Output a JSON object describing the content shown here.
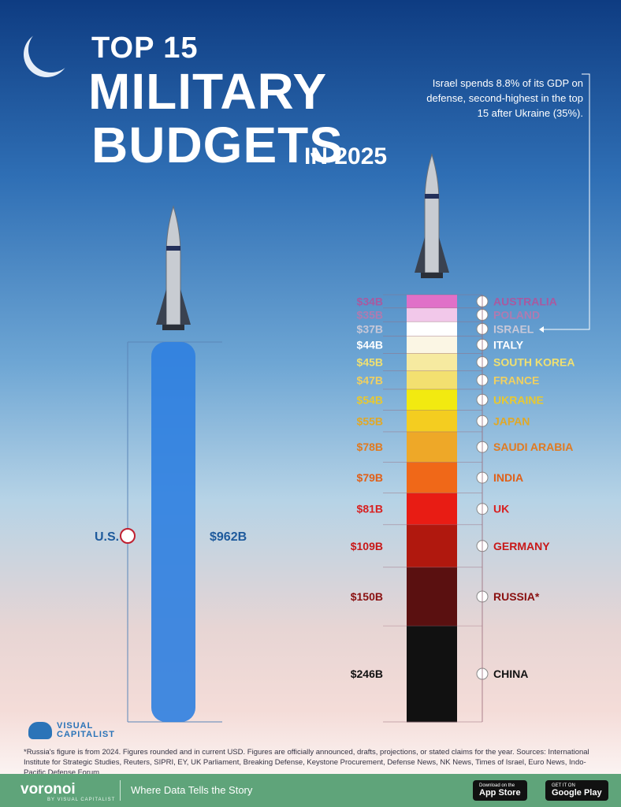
{
  "header": {
    "line1": "TOP 15",
    "line2": "MILITARY",
    "line3": "BUDGETS",
    "line3_suffix": "IN 2025"
  },
  "annotation": "Israel spends 8.8% of its GDP on defense, second-highest in the top 15 after Ukraine (35%).",
  "footnote": "*Russia's figure is from 2024. Figures rounded and in current USD. Figures are officially announced, drafts, projections, or stated claims for the year. Sources: International Institute for Strategic Studies, Reuters, SIPRI, EY, UK Parliament, Breaking Defense, Keystone Procurement, Defense News, NK News, Times of Israel, Euro News, Indo-Pacific Defense Forum",
  "logo": {
    "line1": "VISUAL",
    "line2": "CAPITALIST"
  },
  "footer": {
    "brand": "voronoi",
    "brand_sub": "BY VISUAL CAPITALIST",
    "tagline": "Where Data Tells the Story",
    "app_store_small": "Download on the",
    "app_store": "App Store",
    "google_small": "GET IT ON",
    "google": "Google Play"
  },
  "chart_data": {
    "type": "bar",
    "unit": "USD billions",
    "left": {
      "country": "U.S.",
      "label": "$962B",
      "value": 962,
      "color": "#2f7fe0"
    },
    "stack": [
      {
        "country": "AUSTRALIA",
        "label": "$34B",
        "value": 34,
        "color": "#e070c8"
      },
      {
        "country": "POLAND",
        "label": "$35B",
        "value": 35,
        "color": "#f2c8ea"
      },
      {
        "country": "ISRAEL",
        "label": "$37B",
        "value": 37,
        "color": "#ffffff"
      },
      {
        "country": "ITALY",
        "label": "$44B",
        "value": 44,
        "color": "#fbf6e4"
      },
      {
        "country": "SOUTH KOREA",
        "label": "$45B",
        "value": 45,
        "color": "#f6eaa0"
      },
      {
        "country": "FRANCE",
        "label": "$47B",
        "value": 47,
        "color": "#f3e070"
      },
      {
        "country": "UKRAINE",
        "label": "$54B",
        "value": 54,
        "color": "#f2ea10"
      },
      {
        "country": "JAPAN",
        "label": "$55B",
        "value": 55,
        "color": "#f4cd20"
      },
      {
        "country": "SAUDI ARABIA",
        "label": "$78B",
        "value": 78,
        "color": "#eea828"
      },
      {
        "country": "INDIA",
        "label": "$79B",
        "value": 79,
        "color": "#f06818"
      },
      {
        "country": "UK",
        "label": "$81B",
        "value": 81,
        "color": "#e81c14"
      },
      {
        "country": "GERMANY",
        "label": "$109B",
        "value": 109,
        "color": "#b0180e"
      },
      {
        "country": "RUSSIA*",
        "label": "$150B",
        "value": 150,
        "color": "#5a1010"
      },
      {
        "country": "CHINA",
        "label": "$246B",
        "value": 246,
        "color": "#111111"
      }
    ],
    "label_colors": [
      "#a85aa0",
      "#b07ab0",
      "#c8c8d8",
      "#ffffff",
      "#f0e070",
      "#f0d060",
      "#e8c830",
      "#e0a828",
      "#e07a20",
      "#e06018",
      "#d82020",
      "#c81818",
      "#8a1010",
      "#111111"
    ]
  }
}
